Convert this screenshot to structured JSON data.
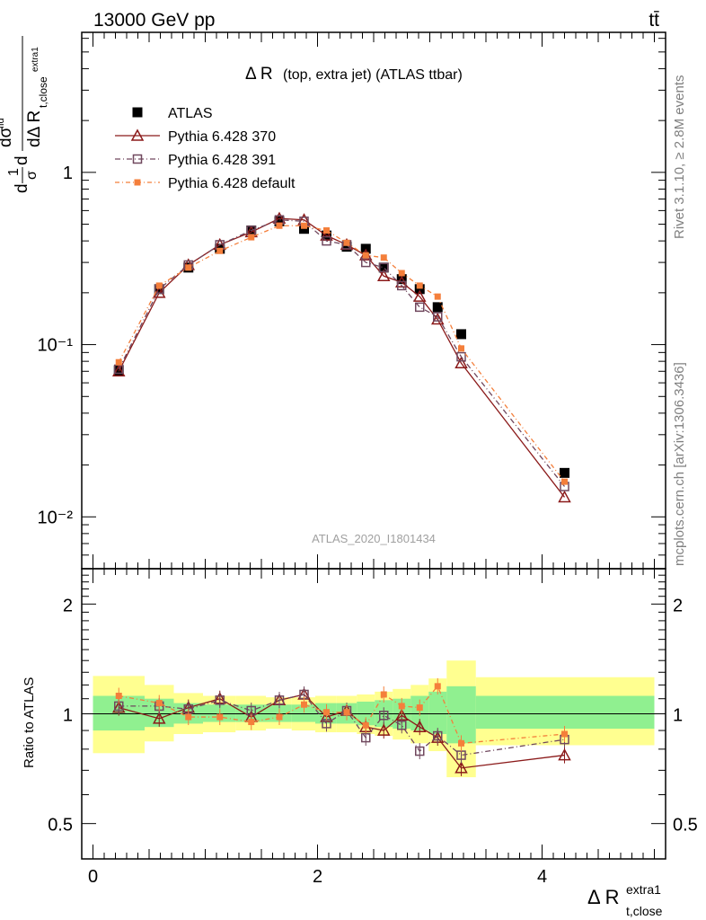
{
  "header": {
    "left": "13000 GeV pp",
    "right": "tt̄"
  },
  "side_labels": {
    "rivet": "Rivet 3.1.10, ≥ 2.8M events",
    "mcplots": "mcplots.cern.ch [arXiv:1306.3436]"
  },
  "chart_data": [
    {
      "type": "scatter",
      "title": "Δ R (top, extra jet) (ATLAS ttbar)",
      "title_main": "Δ R",
      "title_sub": "(top, extra jet) (ATLAS ttbar)",
      "ylabel": "dσ/dΔ R_t,close^extra1 · 1/σ^fid",
      "watermark": "ATLAS_2020_I1801434",
      "yscale": "log",
      "ylim": [
        0.005,
        6.5
      ],
      "xlim": [
        -0.1,
        5.1
      ],
      "ytick_labels": [
        "10⁻²",
        "10⁻¹",
        "1"
      ],
      "legend_position": "top-left",
      "x": [
        0.23,
        0.59,
        0.85,
        1.13,
        1.41,
        1.66,
        1.88,
        2.08,
        2.26,
        2.43,
        2.59,
        2.75,
        2.91,
        3.07,
        3.28,
        4.2
      ],
      "series": [
        {
          "name": "ATLAS",
          "color": "#000000",
          "marker": "square-filled",
          "values": [
            0.071,
            0.21,
            0.28,
            0.36,
            0.46,
            0.52,
            0.47,
            0.43,
            0.37,
            0.36,
            0.28,
            0.24,
            0.21,
            0.165,
            0.115,
            0.018
          ]
        },
        {
          "name": "Pythia 6.428 370",
          "color": "#8b1a1a",
          "marker": "triangle-open",
          "values": [
            0.07,
            0.2,
            0.29,
            0.38,
            0.45,
            0.54,
            0.53,
            0.43,
            0.38,
            0.33,
            0.25,
            0.23,
            0.19,
            0.14,
            0.078,
            0.013
          ]
        },
        {
          "name": "Pythia 6.428 391",
          "color": "#70485e",
          "marker": "square-open",
          "values": [
            0.072,
            0.21,
            0.29,
            0.38,
            0.46,
            0.53,
            0.52,
            0.4,
            0.38,
            0.3,
            0.28,
            0.22,
            0.165,
            0.145,
            0.085,
            0.015
          ]
        },
        {
          "name": "Pythia 6.428 default",
          "color": "#f47f3b",
          "marker": "square-filled-small",
          "values": [
            0.079,
            0.22,
            0.28,
            0.35,
            0.42,
            0.49,
            0.49,
            0.46,
            0.39,
            0.33,
            0.32,
            0.26,
            0.22,
            0.19,
            0.095,
            0.016
          ]
        }
      ]
    },
    {
      "type": "scatter",
      "ylabel": "Ratio to ATLAS",
      "xlabel": "Δ R_t,close^extra1",
      "yscale": "log",
      "ylim": [
        0.4,
        2.5
      ],
      "xlim": [
        -0.1,
        5.1
      ],
      "xtick_labels": [
        "0",
        "2",
        "4"
      ],
      "ytick_labels": [
        "0.5",
        "1",
        "2"
      ],
      "bands": {
        "x_edges": [
          0,
          0.46,
          0.72,
          0.98,
          1.27,
          1.54,
          1.77,
          1.98,
          2.17,
          2.35,
          2.51,
          2.67,
          2.83,
          2.99,
          3.15,
          3.41,
          5.0
        ],
        "inner": [
          [
            0.9,
            1.12
          ],
          [
            0.92,
            1.1
          ],
          [
            0.94,
            1.07
          ],
          [
            0.95,
            1.06
          ],
          [
            0.95,
            1.06
          ],
          [
            0.95,
            1.06
          ],
          [
            0.95,
            1.06
          ],
          [
            0.94,
            1.07
          ],
          [
            0.94,
            1.07
          ],
          [
            0.93,
            1.08
          ],
          [
            0.92,
            1.09
          ],
          [
            0.91,
            1.1
          ],
          [
            0.9,
            1.12
          ],
          [
            0.88,
            1.15
          ],
          [
            0.83,
            1.19
          ],
          [
            0.91,
            1.12
          ]
        ],
        "outer": [
          [
            0.78,
            1.27
          ],
          [
            0.84,
            1.2
          ],
          [
            0.88,
            1.14
          ],
          [
            0.89,
            1.12
          ],
          [
            0.9,
            1.12
          ],
          [
            0.91,
            1.11
          ],
          [
            0.9,
            1.11
          ],
          [
            0.89,
            1.12
          ],
          [
            0.89,
            1.12
          ],
          [
            0.88,
            1.13
          ],
          [
            0.87,
            1.15
          ],
          [
            0.85,
            1.17
          ],
          [
            0.83,
            1.2
          ],
          [
            0.79,
            1.25
          ],
          [
            0.67,
            1.4
          ],
          [
            0.82,
            1.26
          ]
        ],
        "inner_color": "#90f090",
        "outer_color": "#ffff90"
      },
      "series": [
        {
          "name": "Pythia 6.428 370",
          "color": "#8b1a1a",
          "values": [
            1.04,
            0.97,
            1.04,
            1.1,
            0.98,
            1.09,
            1.13,
            0.98,
            1.02,
            0.92,
            0.9,
            0.99,
            0.92,
            0.86,
            0.71,
            0.77
          ]
        },
        {
          "name": "Pythia 6.428 391",
          "color": "#70485e",
          "values": [
            1.05,
            1.05,
            1.03,
            1.09,
            1.02,
            1.09,
            1.13,
            0.94,
            1.02,
            0.86,
            0.99,
            0.93,
            0.79,
            0.87,
            0.77,
            0.85
          ]
        },
        {
          "name": "Pythia 6.428 default",
          "color": "#f47f3b",
          "values": [
            1.12,
            1.07,
            0.98,
            0.98,
            0.95,
            0.98,
            1.06,
            1.01,
            1.01,
            0.93,
            1.13,
            1.05,
            1.04,
            1.19,
            0.83,
            0.88
          ]
        }
      ]
    }
  ]
}
